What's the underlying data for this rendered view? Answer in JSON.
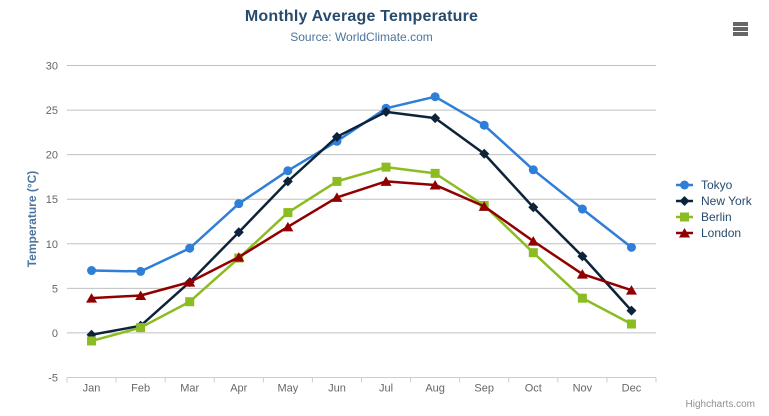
{
  "credits": {
    "label": "Highcharts.com"
  },
  "menu": {
    "icon": "hamburger-icon"
  },
  "palette": {
    "grid": "#C0C0C0",
    "axis_line": "#C0D0E0",
    "tick": "#C0D0E0",
    "axis_label": "#666666",
    "title": "#274b6d",
    "subtitle": "#4d759e",
    "axis_title": "#4d759e",
    "legend_text": "#274b6d",
    "credits_text": "#909090"
  },
  "chart_data": {
    "type": "line",
    "title": "Monthly Average Temperature",
    "subtitle": "Source: WorldClimate.com",
    "xlabel": "",
    "ylabel": "Temperature (°C)",
    "categories": [
      "Jan",
      "Feb",
      "Mar",
      "Apr",
      "May",
      "Jun",
      "Jul",
      "Aug",
      "Sep",
      "Oct",
      "Nov",
      "Dec"
    ],
    "ylim": [
      -5,
      30
    ],
    "yticks": [
      -5,
      0,
      5,
      10,
      15,
      20,
      25,
      30
    ],
    "grid": true,
    "legend_position": "right",
    "series": [
      {
        "name": "Tokyo",
        "color": "#2f7ed8",
        "marker": "circle",
        "values": [
          7.0,
          6.9,
          9.5,
          14.5,
          18.2,
          21.5,
          25.2,
          26.5,
          23.3,
          18.3,
          13.9,
          9.6
        ]
      },
      {
        "name": "New York",
        "color": "#0d233a",
        "marker": "diamond",
        "values": [
          -0.2,
          0.8,
          5.7,
          11.3,
          17.0,
          22.0,
          24.8,
          24.1,
          20.1,
          14.1,
          8.6,
          2.5
        ]
      },
      {
        "name": "Berlin",
        "color": "#8bbc21",
        "marker": "square",
        "values": [
          -0.9,
          0.6,
          3.5,
          8.4,
          13.5,
          17.0,
          18.6,
          17.9,
          14.3,
          9.0,
          3.9,
          1.0
        ]
      },
      {
        "name": "London",
        "color": "#910000",
        "marker": "triangle",
        "values": [
          3.9,
          4.2,
          5.7,
          8.5,
          11.9,
          15.2,
          17.0,
          16.6,
          14.2,
          10.3,
          6.6,
          4.8
        ]
      }
    ]
  }
}
